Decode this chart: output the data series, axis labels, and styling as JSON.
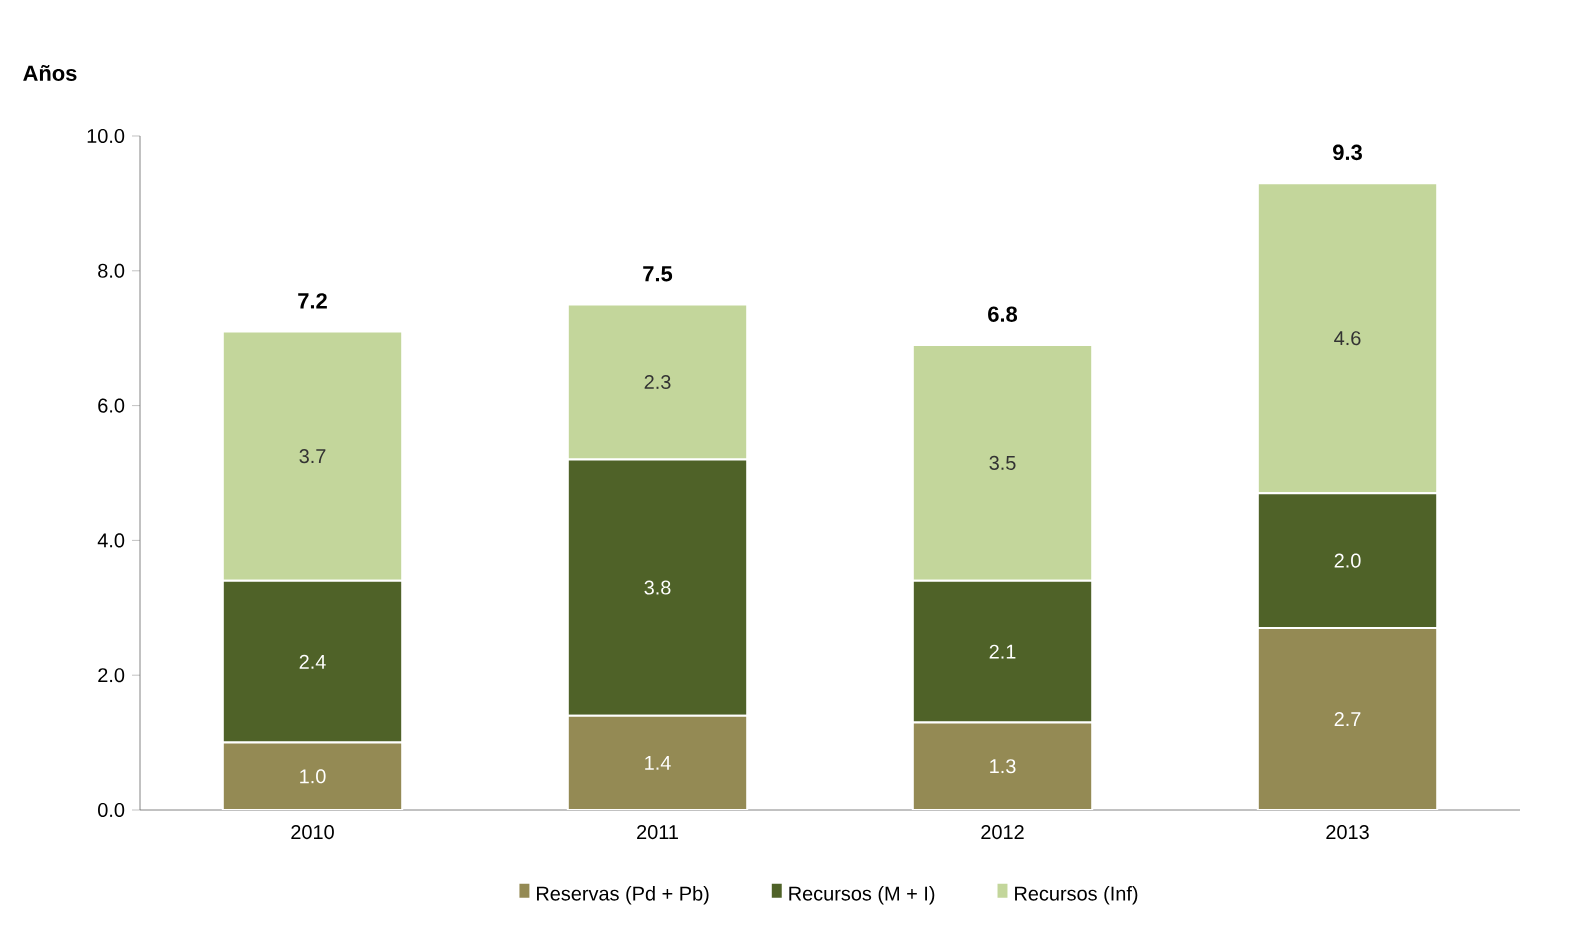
{
  "chart_data": {
    "type": "bar",
    "stacked": true,
    "ylabel": "Años",
    "categories": [
      "2010",
      "2011",
      "2012",
      "2013"
    ],
    "series": [
      {
        "name": "Reservas (Pd + Pb)",
        "color": "#948a54",
        "values": [
          1.0,
          1.4,
          1.3,
          2.7
        ],
        "value_labels": [
          "1.0",
          "1.4",
          "1.3",
          "2.7"
        ]
      },
      {
        "name": "Recursos (M + I)",
        "color": "#4f6228",
        "values": [
          2.4,
          3.8,
          2.1,
          2.0
        ],
        "value_labels": [
          "2.4",
          "3.8",
          "2.1",
          "2.0"
        ]
      },
      {
        "name": "Recursos (Inf)",
        "color": "#c3d69b",
        "values": [
          3.7,
          2.3,
          3.5,
          4.6
        ],
        "value_labels": [
          "3.7",
          "2.3",
          "3.5",
          "4.6"
        ]
      }
    ],
    "totals": [
      "7.2",
      "7.5",
      "6.8",
      "9.3"
    ],
    "ylim": [
      0,
      10
    ],
    "yticks": [
      {
        "value": 0,
        "label": "0.0"
      },
      {
        "value": 2,
        "label": "2.0"
      },
      {
        "value": 4,
        "label": "4.0"
      },
      {
        "value": 6,
        "label": "6.0"
      },
      {
        "value": 8,
        "label": "8.0"
      },
      {
        "value": 10,
        "label": "10.0"
      }
    ],
    "grid": false,
    "legend": "bottom"
  }
}
